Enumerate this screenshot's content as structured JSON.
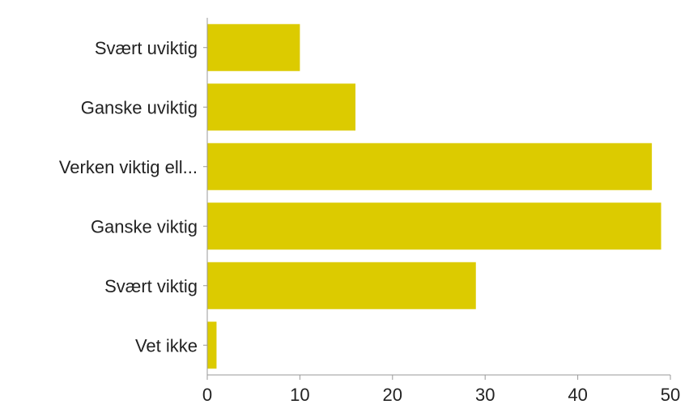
{
  "chart_data": {
    "type": "bar",
    "orientation": "horizontal",
    "title": "",
    "xlabel": "",
    "ylabel": "",
    "categories": [
      "Svært uviktig",
      "Ganske uviktig",
      "Verken viktig ell...",
      "Ganske viktig",
      "Svært viktig",
      "Vet ikke"
    ],
    "values": [
      10,
      16,
      48,
      49,
      29,
      1
    ],
    "xlim": [
      0,
      50
    ],
    "xticks": [
      0,
      10,
      20,
      30,
      40,
      50
    ],
    "grid": false,
    "legend": "none",
    "bar_color": "#dccb00",
    "axis_color": "#999999",
    "label_color": "#222222"
  }
}
